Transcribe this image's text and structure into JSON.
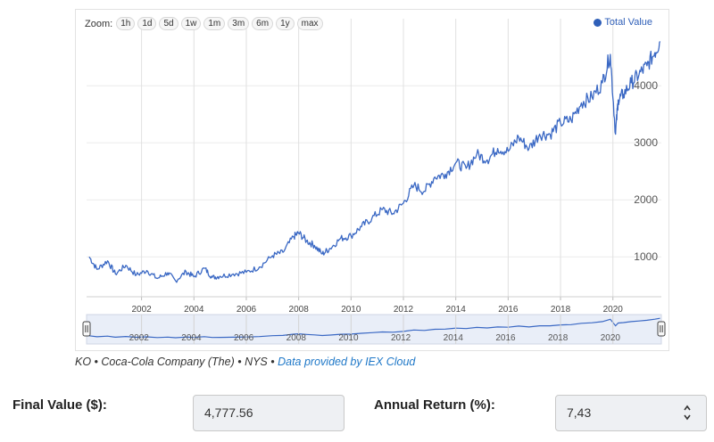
{
  "toolbar": {
    "zoom_label": "Zoom:",
    "zoom_buttons": [
      "1h",
      "1d",
      "5d",
      "1w",
      "1m",
      "3m",
      "6m",
      "1y",
      "max"
    ]
  },
  "legend": {
    "label": "Total Value",
    "color": "#2f5fb8"
  },
  "chart_data": {
    "type": "line",
    "series": [
      {
        "name": "Total Value",
        "color": "#3a68c4",
        "x": [
          2000.0,
          2000.3,
          2000.7,
          2001.0,
          2001.4,
          2001.8,
          2002.2,
          2002.6,
          2003.0,
          2003.3,
          2003.7,
          2004.0,
          2004.4,
          2004.7,
          2005.0,
          2005.5,
          2006.0,
          2006.5,
          2007.0,
          2007.4,
          2007.8,
          2008.0,
          2008.3,
          2008.6,
          2008.9,
          2009.2,
          2009.6,
          2010.0,
          2010.4,
          2010.8,
          2011.2,
          2011.6,
          2012.0,
          2012.4,
          2012.8,
          2013.2,
          2013.6,
          2014.0,
          2014.4,
          2014.8,
          2015.2,
          2015.6,
          2016.0,
          2016.4,
          2016.8,
          2017.2,
          2017.6,
          2018.0,
          2018.4,
          2018.8,
          2019.2,
          2019.6,
          2019.9,
          2020.1,
          2020.2,
          2020.4,
          2020.7,
          2021.0,
          2021.3,
          2021.6,
          2021.8
        ],
        "values": [
          1000,
          780,
          930,
          700,
          850,
          680,
          760,
          620,
          720,
          580,
          740,
          650,
          800,
          640,
          660,
          700,
          730,
          820,
          1020,
          1080,
          1350,
          1420,
          1280,
          1200,
          1050,
          1150,
          1320,
          1370,
          1530,
          1680,
          1830,
          1760,
          1940,
          2250,
          2150,
          2400,
          2450,
          2650,
          2550,
          2800,
          2700,
          2900,
          2850,
          3100,
          2900,
          3150,
          3150,
          3350,
          3400,
          3700,
          3800,
          4050,
          4550,
          3150,
          3750,
          3850,
          4050,
          4200,
          4350,
          4580,
          4777.56
        ]
      }
    ],
    "xlim": [
      1999.9,
      2021.85
    ],
    "ylim": [
      300,
      4800
    ],
    "x_ticks": [
      "2002",
      "2004",
      "2006",
      "2008",
      "2010",
      "2012",
      "2014",
      "2016",
      "2018",
      "2020"
    ],
    "y_ticks": [
      "1000",
      "2000",
      "3000",
      "4000"
    ],
    "navigator_ticks": [
      "2002",
      "2004",
      "2006",
      "2008",
      "2010",
      "2012",
      "2014",
      "2016",
      "2018",
      "2020"
    ],
    "grid": true,
    "legend_position": "top-right"
  },
  "attribution": {
    "text": "KO • Coca-Cola Company (The) • NYS • ",
    "link": "Data provided by IEX Cloud"
  },
  "fields": {
    "final_value_label": "Final Value ($):",
    "final_value": "4,777.56",
    "annual_return_label": "Annual Return (%):",
    "annual_return": "7,43"
  }
}
